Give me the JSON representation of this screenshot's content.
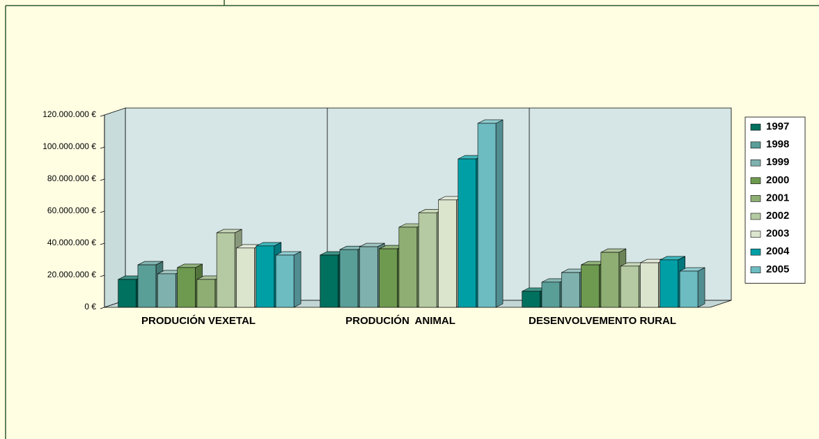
{
  "chart_data": {
    "type": "bar3d",
    "categories": [
      "PRODUCIÓN VEXETAL",
      "PRODUCIÓN  ANIMAL",
      "DESENVOLVEMENTO RURAL"
    ],
    "series": [
      {
        "name": "1997",
        "color": "#00705f",
        "values": [
          17400000,
          32600000,
          10000000
        ]
      },
      {
        "name": "1998",
        "color": "#5a9e98",
        "values": [
          26500000,
          36000000,
          15700000
        ]
      },
      {
        "name": "1999",
        "color": "#7fb2ae",
        "values": [
          20900000,
          37800000,
          21700000
        ]
      },
      {
        "name": "2000",
        "color": "#6e9a50",
        "values": [
          24800000,
          36500000,
          26500000
        ]
      },
      {
        "name": "2001",
        "color": "#8fae74",
        "values": [
          17400000,
          50000000,
          34300000
        ]
      },
      {
        "name": "2002",
        "color": "#b5caa2",
        "values": [
          46500000,
          59000000,
          25700000
        ]
      },
      {
        "name": "2003",
        "color": "#dbe4cd",
        "values": [
          37000000,
          67000000,
          27800000
        ]
      },
      {
        "name": "2004",
        "color": "#009fa6",
        "values": [
          38300000,
          92600000,
          29600000
        ]
      },
      {
        "name": "2005",
        "color": "#6cbcc1",
        "values": [
          32600000,
          114800000,
          22600000
        ]
      }
    ],
    "ylim": [
      0,
      120000000
    ],
    "yticks": [
      {
        "value": 0,
        "label": "0 €"
      },
      {
        "value": 20000000,
        "label": "20.000.000 €"
      },
      {
        "value": 40000000,
        "label": "40.000.000 €"
      },
      {
        "value": 60000000,
        "label": "60.000.000 €"
      },
      {
        "value": 80000000,
        "label": "80.000.000 €"
      },
      {
        "value": 100000000,
        "label": "100.000.000 €"
      },
      {
        "value": 120000000,
        "label": "120.000.000 €"
      }
    ],
    "legend": "right"
  }
}
